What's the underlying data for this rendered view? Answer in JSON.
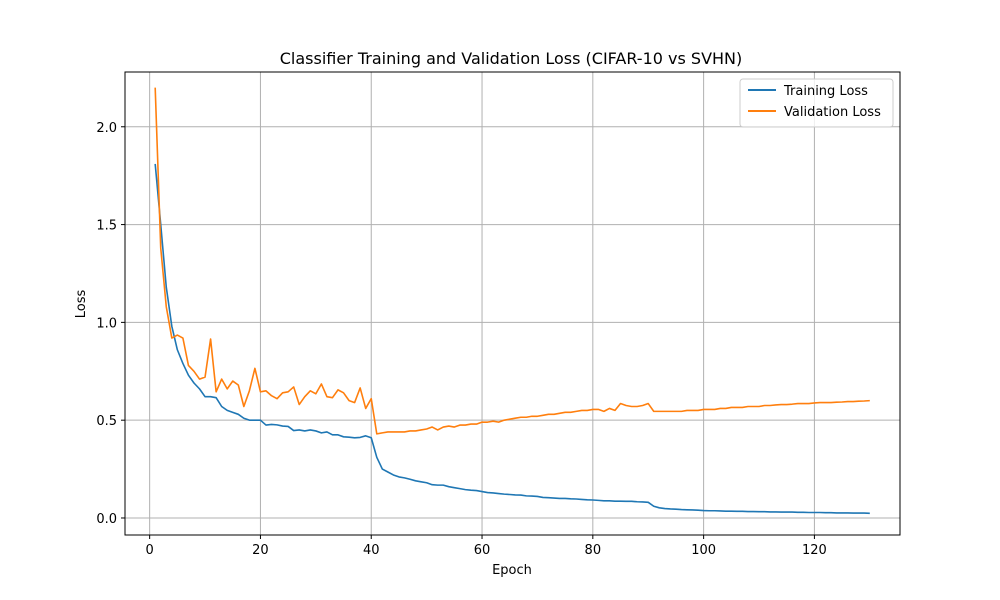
{
  "chart_data": {
    "type": "line",
    "title": "Classifier Training and Validation Loss (CIFAR-10 vs SVHN)",
    "xlabel": "Epoch",
    "ylabel": "Loss",
    "xlim": [
      -4.45,
      135.45
    ],
    "ylim": [
      -0.087,
      2.28
    ],
    "xticks": [
      0,
      20,
      40,
      60,
      80,
      100,
      120
    ],
    "yticks": [
      0.0,
      0.5,
      1.0,
      1.5,
      2.0
    ],
    "xtick_labels": [
      "0",
      "20",
      "40",
      "60",
      "80",
      "100",
      "120"
    ],
    "ytick_labels": [
      "0.0",
      "0.5",
      "1.0",
      "1.5",
      "2.0"
    ],
    "grid": true,
    "legend_position": "top-right",
    "x_start": 1,
    "series": [
      {
        "name": "Training Loss",
        "color": "#1f77b4",
        "values": [
          1.81,
          1.5,
          1.18,
          0.98,
          0.86,
          0.79,
          0.73,
          0.69,
          0.66,
          0.62,
          0.62,
          0.615,
          0.57,
          0.55,
          0.54,
          0.53,
          0.51,
          0.5,
          0.5,
          0.5,
          0.475,
          0.478,
          0.476,
          0.47,
          0.468,
          0.447,
          0.45,
          0.445,
          0.45,
          0.445,
          0.435,
          0.44,
          0.425,
          0.425,
          0.415,
          0.413,
          0.41,
          0.412,
          0.42,
          0.41,
          0.31,
          0.25,
          0.235,
          0.22,
          0.21,
          0.205,
          0.198,
          0.19,
          0.185,
          0.18,
          0.17,
          0.168,
          0.168,
          0.16,
          0.155,
          0.15,
          0.145,
          0.142,
          0.14,
          0.135,
          0.13,
          0.128,
          0.125,
          0.122,
          0.12,
          0.118,
          0.117,
          0.113,
          0.112,
          0.11,
          0.105,
          0.104,
          0.102,
          0.1,
          0.1,
          0.098,
          0.097,
          0.095,
          0.093,
          0.092,
          0.09,
          0.088,
          0.088,
          0.086,
          0.086,
          0.085,
          0.085,
          0.083,
          0.082,
          0.08,
          0.06,
          0.052,
          0.048,
          0.046,
          0.045,
          0.043,
          0.042,
          0.041,
          0.04,
          0.038,
          0.037,
          0.037,
          0.036,
          0.035,
          0.035,
          0.034,
          0.034,
          0.033,
          0.033,
          0.032,
          0.032,
          0.031,
          0.031,
          0.03,
          0.03,
          0.03,
          0.029,
          0.029,
          0.028,
          0.028,
          0.028,
          0.027,
          0.027,
          0.026,
          0.026,
          0.026,
          0.025,
          0.025,
          0.025,
          0.024
        ]
      },
      {
        "name": "Validation Loss",
        "color": "#ff7f0e",
        "values": [
          2.2,
          1.38,
          1.08,
          0.92,
          0.935,
          0.92,
          0.78,
          0.75,
          0.71,
          0.72,
          0.915,
          0.645,
          0.71,
          0.66,
          0.7,
          0.68,
          0.57,
          0.65,
          0.765,
          0.645,
          0.65,
          0.625,
          0.61,
          0.64,
          0.645,
          0.67,
          0.58,
          0.62,
          0.65,
          0.635,
          0.685,
          0.62,
          0.615,
          0.655,
          0.64,
          0.6,
          0.59,
          0.665,
          0.56,
          0.61,
          0.43,
          0.435,
          0.44,
          0.44,
          0.44,
          0.44,
          0.445,
          0.445,
          0.45,
          0.455,
          0.465,
          0.45,
          0.465,
          0.47,
          0.465,
          0.475,
          0.475,
          0.48,
          0.48,
          0.49,
          0.49,
          0.495,
          0.49,
          0.5,
          0.505,
          0.51,
          0.515,
          0.515,
          0.52,
          0.52,
          0.525,
          0.53,
          0.53,
          0.535,
          0.54,
          0.54,
          0.545,
          0.55,
          0.55,
          0.555,
          0.555,
          0.545,
          0.56,
          0.55,
          0.585,
          0.575,
          0.57,
          0.57,
          0.575,
          0.585,
          0.545,
          0.545,
          0.545,
          0.545,
          0.545,
          0.545,
          0.55,
          0.55,
          0.55,
          0.555,
          0.555,
          0.555,
          0.56,
          0.56,
          0.565,
          0.565,
          0.565,
          0.57,
          0.57,
          0.57,
          0.575,
          0.575,
          0.578,
          0.58,
          0.58,
          0.582,
          0.585,
          0.585,
          0.585,
          0.588,
          0.59,
          0.59,
          0.59,
          0.592,
          0.593,
          0.595,
          0.595,
          0.597,
          0.598,
          0.6
        ]
      }
    ]
  }
}
